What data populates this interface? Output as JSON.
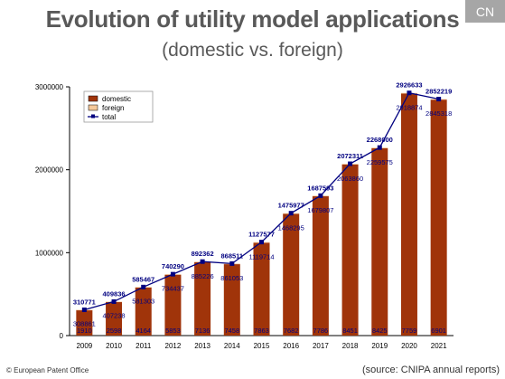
{
  "header": {
    "title": "Evolution of utility model applications",
    "subtitle": "(domestic vs. foreign)",
    "badge": "CN"
  },
  "footer": {
    "copyright": "© European Patent Office",
    "source": "(source: CNIPA annual reports)"
  },
  "colors": {
    "domestic": "#a0340a",
    "foreign": "#f5c89a",
    "total": "#000080",
    "label": "#000080"
  },
  "chart_data": {
    "type": "bar",
    "stacked": true,
    "categories": [
      "2009",
      "2010",
      "2011",
      "2012",
      "2013",
      "2014",
      "2015",
      "2016",
      "2017",
      "2018",
      "2019",
      "2020",
      "2021"
    ],
    "series": [
      {
        "name": "domestic",
        "type": "bar",
        "values": [
          308861,
          407238,
          581303,
          734437,
          885226,
          861053,
          1119714,
          1468295,
          1679807,
          2063860,
          2259575,
          2918874,
          2845318
        ]
      },
      {
        "name": "foreign",
        "type": "bar",
        "values": [
          1910,
          2598,
          4164,
          5853,
          7136,
          7458,
          7863,
          7682,
          7786,
          8451,
          8425,
          7759,
          6901
        ]
      },
      {
        "name": "total",
        "type": "line",
        "values": [
          310771,
          409836,
          585467,
          740290,
          892362,
          868511,
          1127577,
          1475977,
          1687593,
          2072311,
          2268000,
          2926633,
          2852219
        ]
      }
    ],
    "legend": [
      "domestic",
      "foreign",
      "total"
    ],
    "legend_position": "top-left",
    "yticks": [
      "0",
      "1000000",
      "2000000",
      "3000000"
    ],
    "ylim": [
      0,
      3000000
    ],
    "grid": false
  }
}
